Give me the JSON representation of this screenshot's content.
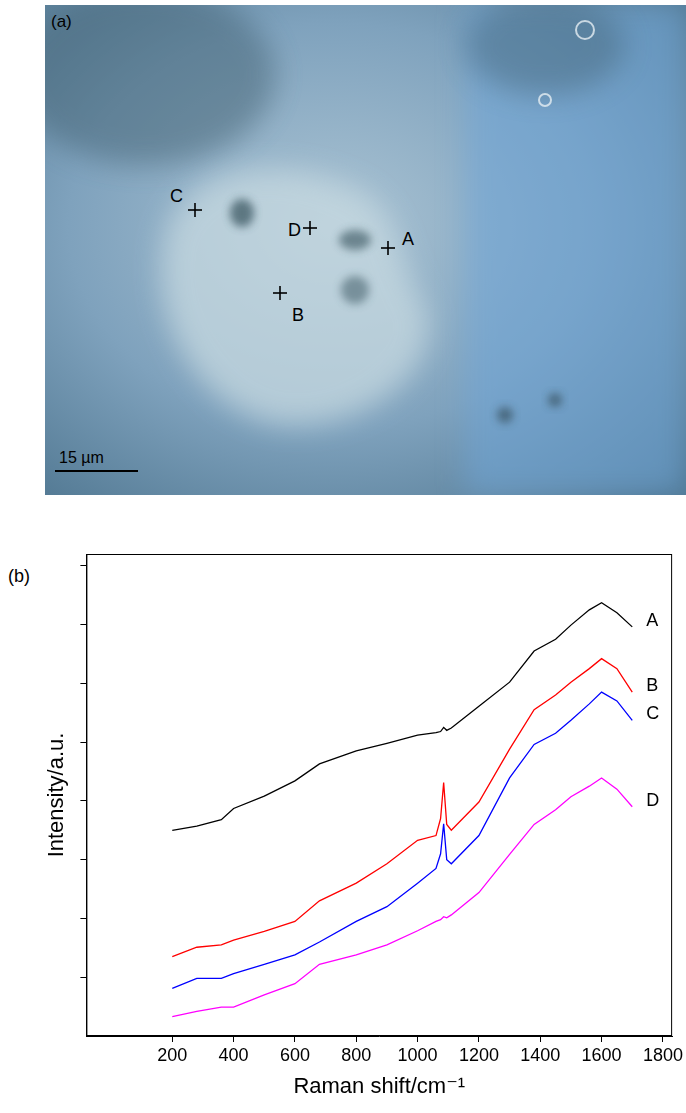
{
  "image_panel": {
    "panel_label": "(a)",
    "markers": [
      "A",
      "B",
      "C",
      "D"
    ],
    "scale_bar": "15 µm"
  },
  "chart_data": {
    "type": "line",
    "panel_label": "(b)",
    "x_label": "Raman shift/cm⁻¹",
    "y_label": "Intensity/a.u.",
    "x": [
      200,
      280,
      360,
      400,
      500,
      600,
      680,
      800,
      900,
      1000,
      1060,
      1075,
      1085,
      1095,
      1110,
      1200,
      1300,
      1380,
      1450,
      1500,
      1560,
      1600,
      1650,
      1700
    ],
    "series": [
      {
        "name": "A",
        "color": "#000000",
        "values": [
          3.5,
          3.57,
          3.68,
          3.87,
          4.08,
          4.34,
          4.63,
          4.85,
          4.98,
          5.12,
          5.16,
          5.18,
          5.25,
          5.2,
          5.24,
          5.61,
          6.02,
          6.55,
          6.75,
          6.99,
          7.25,
          7.37,
          7.2,
          6.96
        ]
      },
      {
        "name": "B",
        "color": "#ff0000",
        "values": [
          1.35,
          1.51,
          1.55,
          1.63,
          1.78,
          1.95,
          2.3,
          2.6,
          2.93,
          3.33,
          3.41,
          3.7,
          4.31,
          3.6,
          3.5,
          3.98,
          4.88,
          5.55,
          5.8,
          6.02,
          6.25,
          6.42,
          6.25,
          5.85
        ]
      },
      {
        "name": "C",
        "color": "#0000ff",
        "values": [
          0.81,
          0.98,
          0.98,
          1.06,
          1.22,
          1.38,
          1.6,
          1.95,
          2.2,
          2.6,
          2.85,
          3.1,
          3.61,
          3.0,
          2.93,
          3.41,
          4.39,
          4.96,
          5.15,
          5.37,
          5.65,
          5.85,
          5.7,
          5.37
        ]
      },
      {
        "name": "D",
        "color": "#ff00ff",
        "values": [
          0.33,
          0.42,
          0.49,
          0.49,
          0.7,
          0.89,
          1.22,
          1.38,
          1.55,
          1.79,
          1.95,
          1.98,
          2.03,
          2.01,
          2.06,
          2.44,
          3.09,
          3.6,
          3.85,
          4.07,
          4.25,
          4.39,
          4.2,
          3.9
        ]
      }
    ],
    "xlim": [
      -80,
      1830
    ],
    "xticks": [
      200,
      400,
      600,
      800,
      1000,
      1200,
      1400,
      1600,
      1800
    ],
    "ylim": [
      0,
      8.2
    ],
    "yticks": [
      1,
      2,
      3,
      4,
      5,
      6,
      7,
      8
    ],
    "grid": false,
    "tick_labels": "x"
  }
}
